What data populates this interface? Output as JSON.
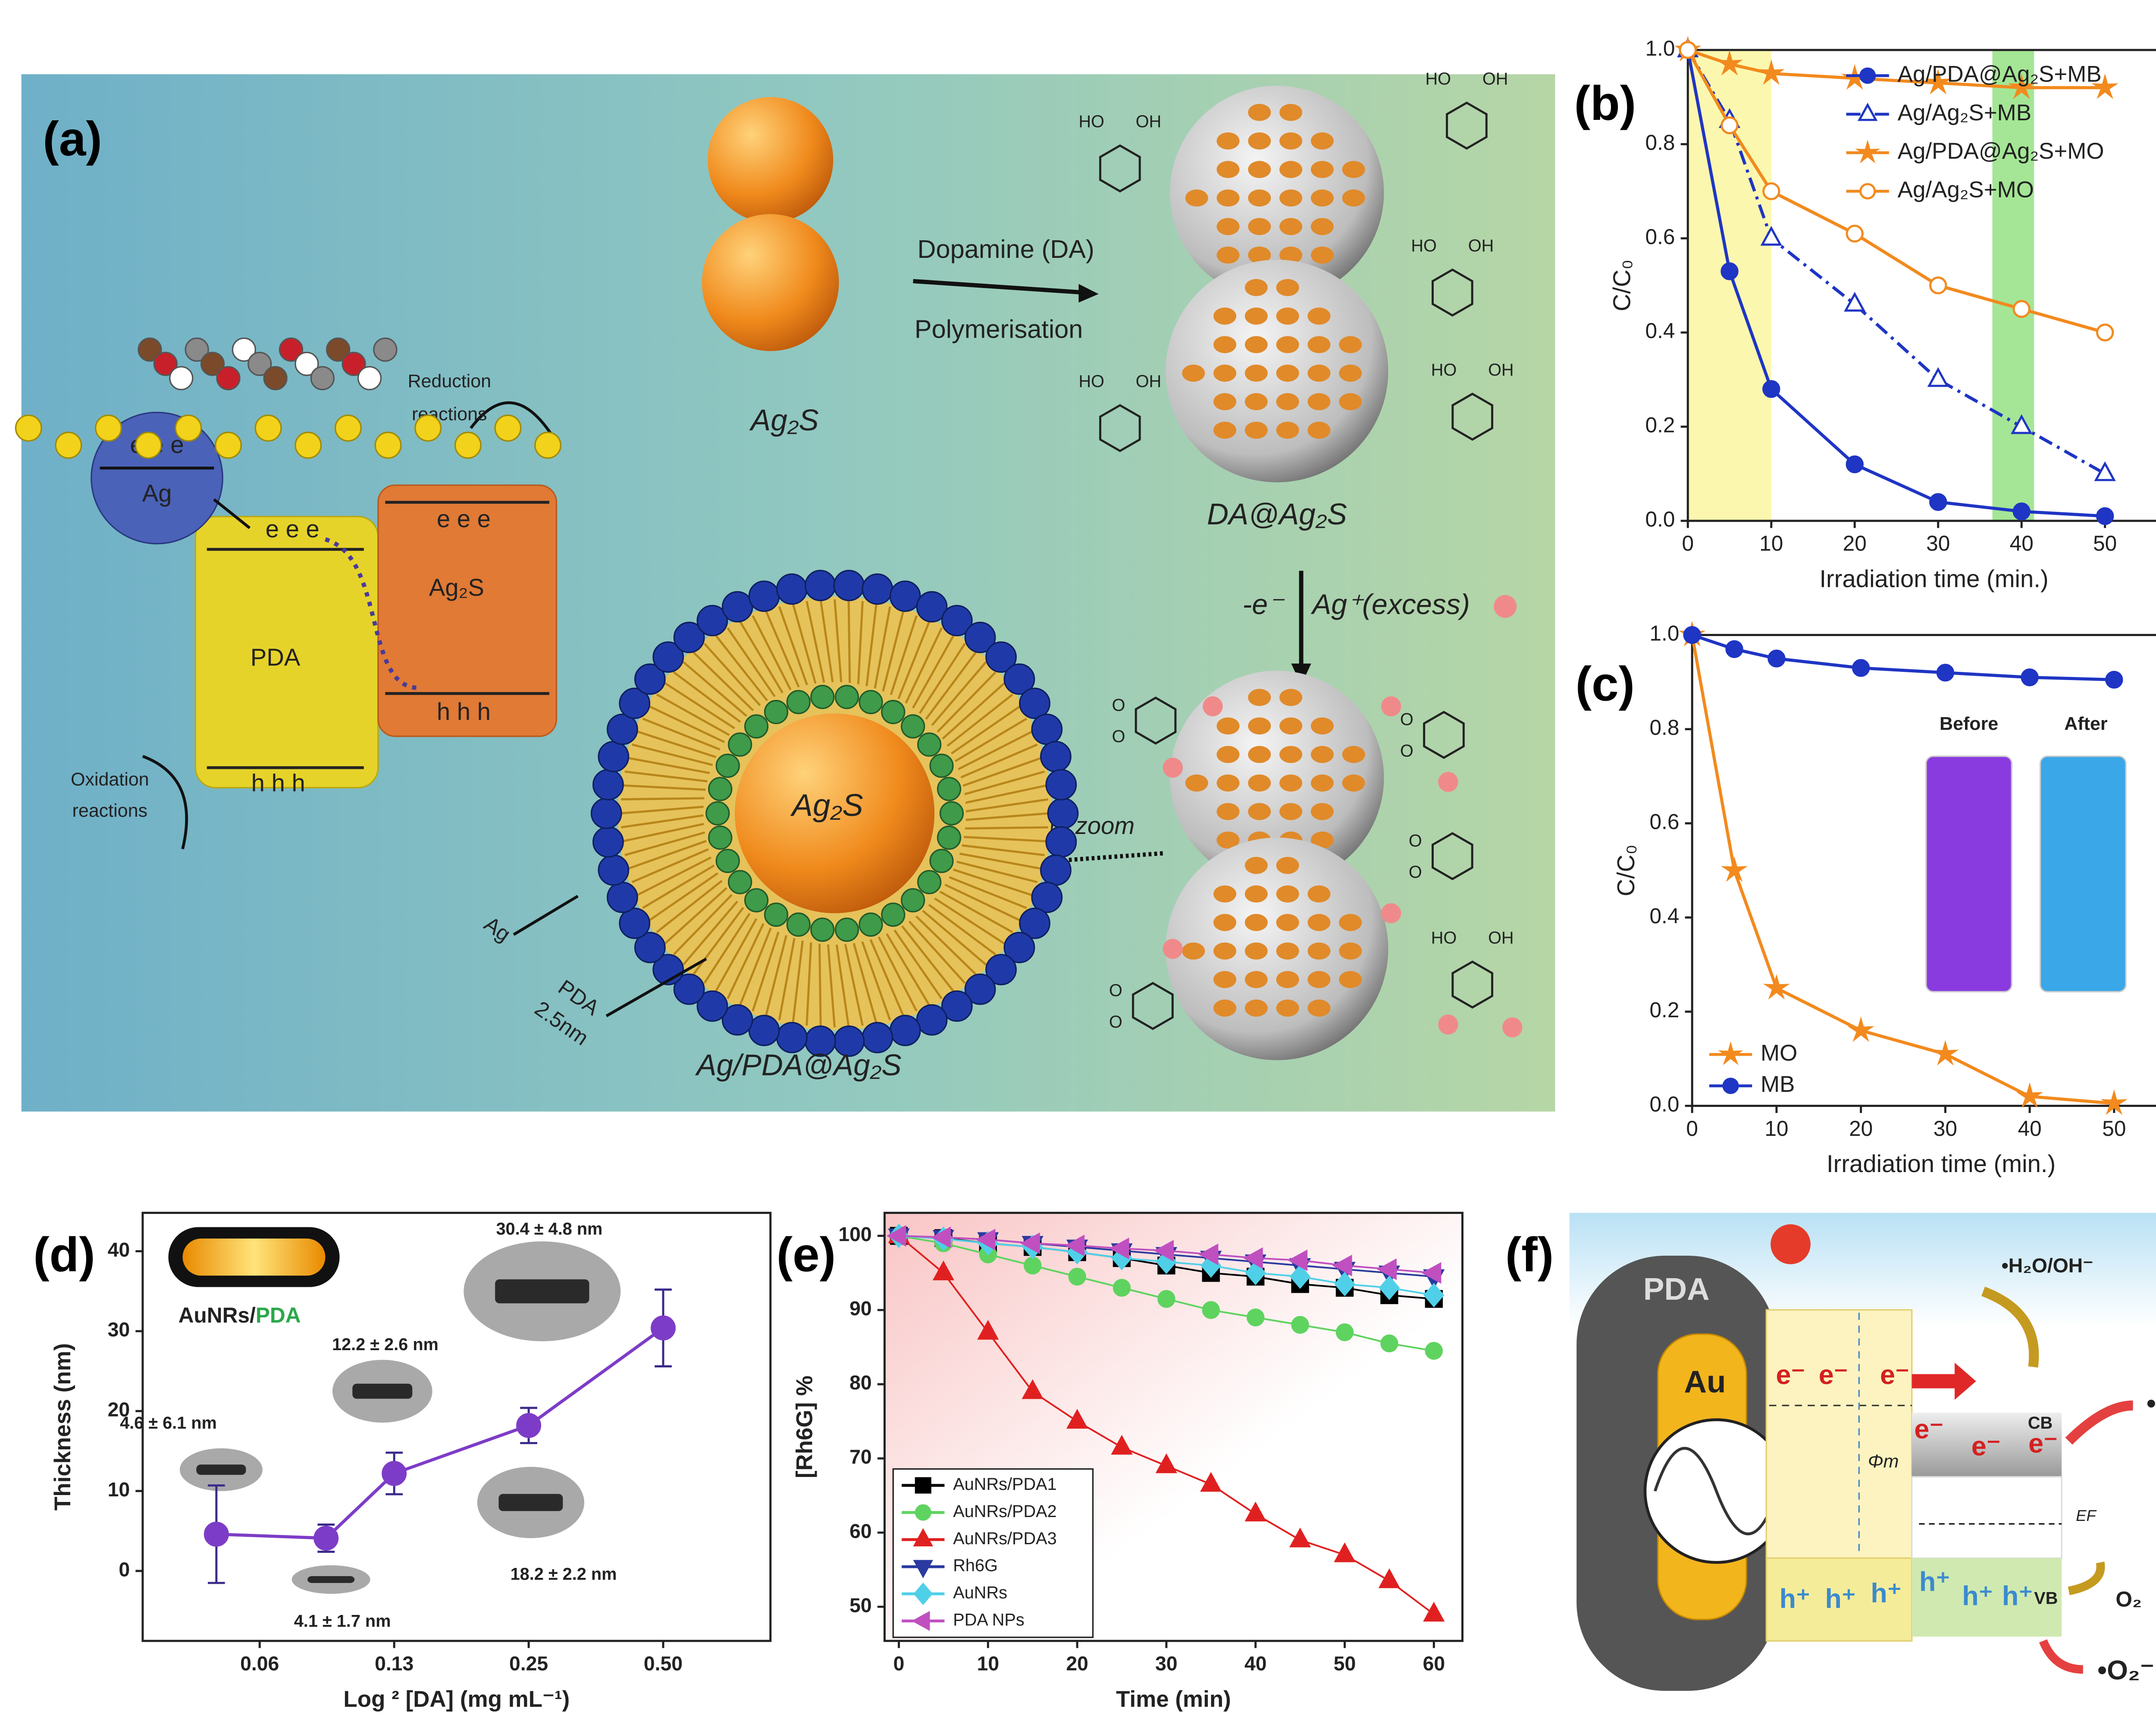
{
  "diagram_a": {
    "panel_label": "(a)",
    "reduction": [
      "Reduction",
      "reactions"
    ],
    "oxidation": [
      "Oxidation",
      "reactions"
    ],
    "electrons": [
      "e e e",
      "e e e",
      "e e e"
    ],
    "holes": [
      "h h h",
      "h h h"
    ],
    "ag": "Ag",
    "pda": "PDA",
    "ag2s_band": "Ag₂S",
    "ag2s": "Ag₂S",
    "step1": [
      "Dopamine (DA)",
      "Polymerisation"
    ],
    "da_ag2s": "DA@Ag₂S",
    "step2": [
      "-e⁻",
      "Ag⁺(excess)"
    ],
    "zoom": "In zoom",
    "core": "Ag₂S",
    "shell_ag": "Ag",
    "shell_pda": [
      "PDA",
      "2.5nm"
    ],
    "product": "Ag/PDA@Ag₂S",
    "catechol_labels": [
      "HO",
      "OH",
      "HO",
      "OH",
      "HO",
      "OH",
      "HO",
      "OH",
      "HO",
      "OH",
      "HO",
      "OH"
    ],
    "quinone_labels": [
      "O",
      "O",
      "O",
      "O",
      "O",
      "O",
      "O",
      "O"
    ]
  },
  "diagram_f": {
    "panel_label": "(f)",
    "pda": "PDA",
    "au": "Au",
    "electrons": [
      "e⁻",
      "e⁻",
      "e⁻",
      "e⁻",
      "e⁻",
      "e⁻"
    ],
    "h2o": "•H₂O/OH⁻",
    "oh": "•OH",
    "cb": "CB",
    "vb": "VB",
    "phi": "Φm",
    "ef": "EF",
    "holes": [
      "h⁺",
      "h⁺",
      "h⁺",
      "h⁺",
      "h⁺",
      "h⁺"
    ],
    "o2": "O₂",
    "o2r": "•O₂⁻"
  },
  "chart_data": [
    {
      "type": "line",
      "panel_label": "(b)",
      "x_label": "Irradiation time (min.)",
      "y_label": "C/C₀",
      "xlim": [
        0,
        59
      ],
      "ylim": [
        0,
        1
      ],
      "xticks": [
        0,
        10,
        20,
        30,
        40,
        50
      ],
      "yticks": [
        {
          "value": 0,
          "label": "0.0"
        },
        {
          "value": 0.2,
          "label": "0.2"
        },
        {
          "value": 0.4,
          "label": "0.4"
        },
        {
          "value": 0.6,
          "label": "0.6"
        },
        {
          "value": 0.8,
          "label": "0.8"
        },
        {
          "value": 1,
          "label": "1.0"
        }
      ],
      "legend": "upper right",
      "shaded_regions": [
        {
          "x": [
            0,
            10
          ],
          "color": "#fbf59b"
        },
        {
          "x": [
            36.5,
            41.5
          ],
          "color": "#8de07a"
        }
      ],
      "x": [
        0,
        5,
        10,
        20,
        30,
        40,
        50
      ],
      "series": [
        {
          "name": "Ag/PDA@Ag₂S+MB",
          "color": "#1f35c4",
          "marker": "circle",
          "line": "solid",
          "values": [
            1,
            0.53,
            0.28,
            0.12,
            0.04,
            0.02,
            0.01
          ]
        },
        {
          "name": "Ag/Ag₂S+MB",
          "color": "#1f35c4",
          "marker": "triangle",
          "open": true,
          "line": "dashdot",
          "values": [
            1,
            0.85,
            0.6,
            0.46,
            0.3,
            0.2,
            0.1
          ]
        },
        {
          "name": "Ag/PDA@Ag₂S+MO",
          "color": "#f28a1e",
          "marker": "star",
          "line": "solid",
          "values": [
            1,
            0.97,
            0.95,
            0.94,
            0.93,
            0.92,
            0.92
          ]
        },
        {
          "name": "Ag/Ag₂S+MO",
          "color": "#f28a1e",
          "marker": "circle",
          "open": true,
          "line": "solid",
          "values": [
            1,
            0.84,
            0.7,
            0.61,
            0.5,
            0.45,
            0.4
          ]
        }
      ]
    },
    {
      "type": "line",
      "panel_label": "(c)",
      "x_label": "Irradiation time (min.)",
      "y_label": "C/C₀",
      "xlim": [
        0,
        59
      ],
      "ylim": [
        0,
        1
      ],
      "xticks": [
        0,
        10,
        20,
        30,
        40,
        50
      ],
      "yticks": [
        {
          "value": 0,
          "label": "0.0"
        },
        {
          "value": 0.2,
          "label": "0.2"
        },
        {
          "value": 0.4,
          "label": "0.4"
        },
        {
          "value": 0.6,
          "label": "0.6"
        },
        {
          "value": 0.8,
          "label": "0.8"
        },
        {
          "value": 1,
          "label": "1.0"
        }
      ],
      "legend": "lower left",
      "inset_labels": [
        "Before",
        "After"
      ],
      "x": [
        0,
        5,
        10,
        20,
        30,
        40,
        50
      ],
      "series": [
        {
          "name": "MO",
          "color": "#f28a1e",
          "marker": "star",
          "line": "solid",
          "values": [
            1,
            0.5,
            0.25,
            0.16,
            0.11,
            0.02,
            0.005
          ]
        },
        {
          "name": "MB",
          "color": "#1f35c4",
          "marker": "circle",
          "line": "solid",
          "values": [
            1,
            0.97,
            0.95,
            0.93,
            0.92,
            0.91,
            0.905
          ]
        }
      ]
    },
    {
      "type": "line",
      "panel_label": "(d)",
      "x_label": "Log ² [DA] (mg mL⁻¹)",
      "y_label": "Thickness (nm)",
      "xscale": "log",
      "xlim": [
        0.0342,
        0.869
      ],
      "ylim": [
        -8.75,
        44.8
      ],
      "xticks": [
        {
          "value": 0.0625,
          "label": "0.06"
        },
        {
          "value": 0.125,
          "label": "0.13"
        },
        0.25,
        {
          "value": 0.5,
          "label": "0.50"
        }
      ],
      "yticks": [
        0,
        10,
        20,
        30,
        40
      ],
      "inset_label_parts": [
        "AuNRs/",
        "PDA"
      ],
      "color": "#7d3cc7",
      "marker": "circle",
      "line": "solid",
      "x": [
        0.05,
        0.088,
        0.125,
        0.25,
        0.5
      ],
      "values": [
        4.6,
        4.1,
        12.2,
        18.2,
        30.4
      ],
      "errors": [
        6.1,
        1.7,
        2.6,
        2.2,
        4.8
      ],
      "value_labels": [
        "4.6 ± 6.1 nm",
        "4.1 ± 1.7 nm",
        "12.2 ± 2.6 nm",
        "18.2 ± 2.2 nm",
        "30.4 ± 4.8 nm"
      ]
    },
    {
      "type": "line",
      "panel_label": "(e)",
      "x_label": "Time (min)",
      "y_label": "[Rh6G] %",
      "xlim": [
        -1.6,
        63.2
      ],
      "ylim": [
        45.4,
        103.1
      ],
      "xticks": [
        0,
        10,
        20,
        30,
        40,
        50,
        60
      ],
      "yticks": [
        50,
        60,
        70,
        80,
        90,
        100
      ],
      "legend": "lower left",
      "legend_frame": true,
      "x": [
        0,
        5,
        10,
        15,
        20,
        25,
        30,
        35,
        40,
        45,
        50,
        55,
        60
      ],
      "series": [
        {
          "name": "AuNRs/PDA1",
          "color": "#000000",
          "marker": "square",
          "line": "solid",
          "values": [
            100,
            99.7,
            99,
            98.5,
            97.8,
            97,
            96,
            95,
            94.5,
            93.5,
            93,
            92,
            91.5
          ]
        },
        {
          "name": "AuNRs/PDA2",
          "color": "#5fd35f",
          "marker": "circle",
          "line": "solid",
          "values": [
            100,
            99,
            97.5,
            96,
            94.5,
            93,
            91.5,
            90,
            89,
            88,
            87,
            85.5,
            84.5
          ]
        },
        {
          "name": "AuNRs/PDA3",
          "color": "#e02020",
          "marker": "triangle",
          "line": "solid",
          "values": [
            100,
            95,
            87,
            79,
            75,
            71.5,
            69,
            66.5,
            62.5,
            59,
            57,
            53.5,
            49
          ]
        },
        {
          "name": "Rh6G",
          "color": "#2a3aa0",
          "marker": "tri-down",
          "line": "solid",
          "values": [
            100,
            99.8,
            99.5,
            99,
            98.5,
            98,
            97.5,
            97,
            96.5,
            96,
            95.5,
            95,
            94.5
          ]
        },
        {
          "name": "AuNRs",
          "color": "#4fd0e8",
          "marker": "diamond",
          "line": "solid",
          "values": [
            100,
            99.6,
            99,
            98.5,
            97.8,
            97,
            96.5,
            96,
            95,
            94.5,
            93.5,
            93,
            92
          ]
        },
        {
          "name": "PDA NPs",
          "color": "#c050c0",
          "marker": "tri-left",
          "line": "solid",
          "values": [
            100,
            99.8,
            99.5,
            99,
            98.7,
            98.3,
            98,
            97.5,
            97,
            96.7,
            96,
            95.5,
            95
          ]
        }
      ]
    }
  ]
}
